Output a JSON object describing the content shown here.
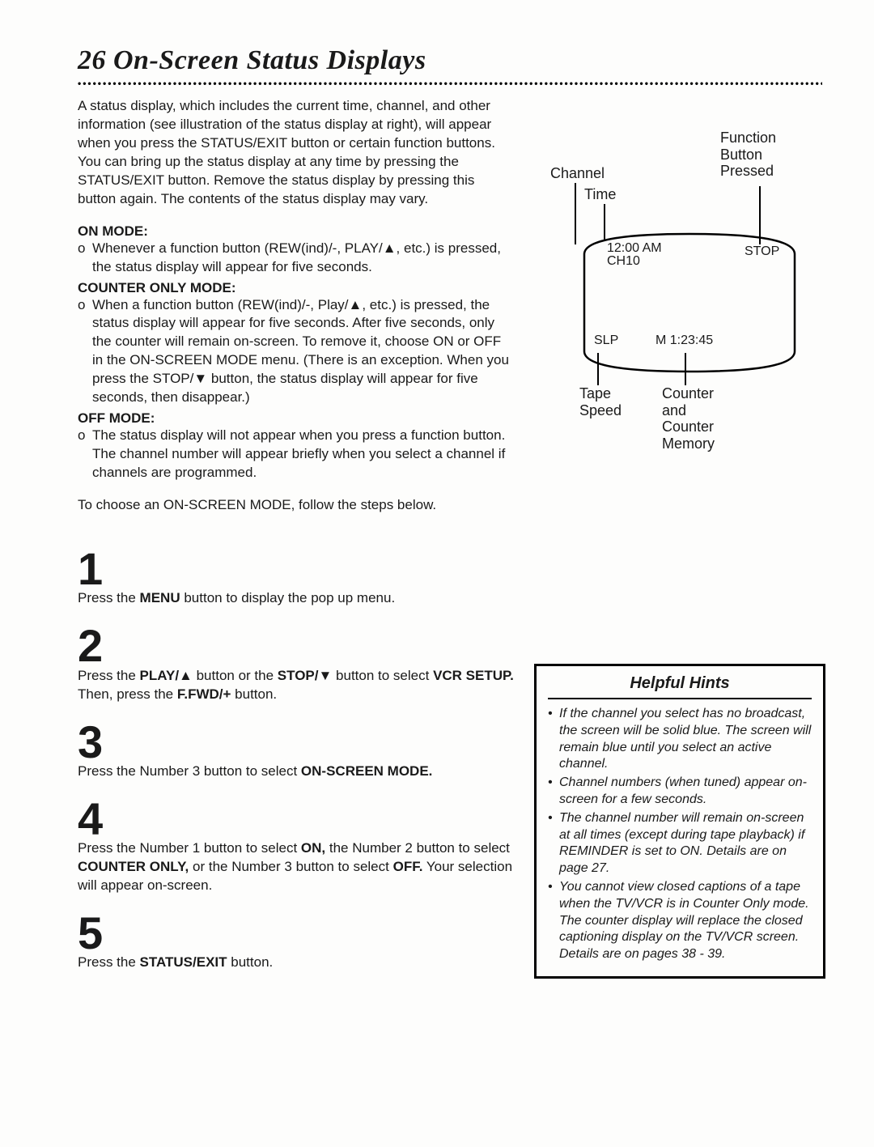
{
  "title": {
    "number": "26",
    "text": "On-Screen Status Displays"
  },
  "intro": "A status display, which includes the current time, channel, and other information (see illustration of the status display at right), will appear when you press the STATUS/EXIT button or certain function buttons. You can bring up the status display at any time by pressing the STATUS/EXIT button. Remove the status display by pressing this button again. The contents of the status display may vary.",
  "modes": {
    "on": {
      "head": "ON MODE:",
      "text": "Whenever a function button (REW(ind)/-, PLAY/▲, etc.) is pressed, the status display will appear for five seconds."
    },
    "counter": {
      "head": "COUNTER ONLY MODE:",
      "text": "When a function button (REW(ind)/-, Play/▲, etc.) is pressed, the status display will appear for five seconds. After five seconds, only the counter will remain on-screen. To remove it, choose ON or OFF in the ON-SCREEN MODE menu. (There is an exception. When you press the STOP/▼ button, the status display will appear for five seconds, then disappear.)"
    },
    "off": {
      "head": "OFF MODE:",
      "text": "The status display will not appear when you press a function button. The channel number will appear briefly when you select a channel if channels are programmed."
    }
  },
  "closing": "To choose an ON-SCREEN MODE, follow the steps below.",
  "steps": [
    {
      "n": "1",
      "html": "Press the <b>MENU</b> button to display the pop up menu."
    },
    {
      "n": "2",
      "html": "Press the <b>PLAY/▲</b> button or the <b>STOP/▼</b> button to select <b>VCR SETUP.</b> Then, press the <b>F.FWD/+</b> button."
    },
    {
      "n": "3",
      "html": "Press the Number 3 button to select <b>ON-SCREEN MODE.</b>"
    },
    {
      "n": "4",
      "html": "Press the Number 1 button to select <b>ON,</b> the Number 2 button to select <b>COUNTER ONLY,</b> or the Number 3 button to select <b>OFF.</b> Your selection will appear on-screen."
    },
    {
      "n": "5",
      "html": "Press the <b>STATUS/EXIT</b> button."
    }
  ],
  "diagram": {
    "labels": {
      "channel": "Channel",
      "time": "Time",
      "func": "Function\nButton\nPressed",
      "tape": "Tape\nSpeed",
      "counter": "Counter\nand\nCounter\nMemory"
    },
    "tv": {
      "time": "12:00 AM",
      "ch": "CH10",
      "stop": "STOP",
      "slp": "SLP",
      "mem": "M 1:23:45"
    }
  },
  "hints": {
    "title": "Helpful Hints",
    "items": [
      "If the channel you select has no broadcast, the screen will be solid blue. The screen will remain blue until you select an active channel.",
      "Channel numbers (when tuned) appear on-screen for a few seconds.",
      "The channel number will remain on-screen at all times (except during tape playback) if REMINDER is set to ON. Details are on page 27.",
      "You cannot view closed captions of a tape when the TV/VCR is in Counter Only mode. The counter display will replace the closed captioning display on the TV/VCR screen. Details are on pages 38 - 39."
    ]
  },
  "colors": {
    "text": "#1a1a1a",
    "border": "#000000",
    "bg": "#fdfdfc"
  }
}
